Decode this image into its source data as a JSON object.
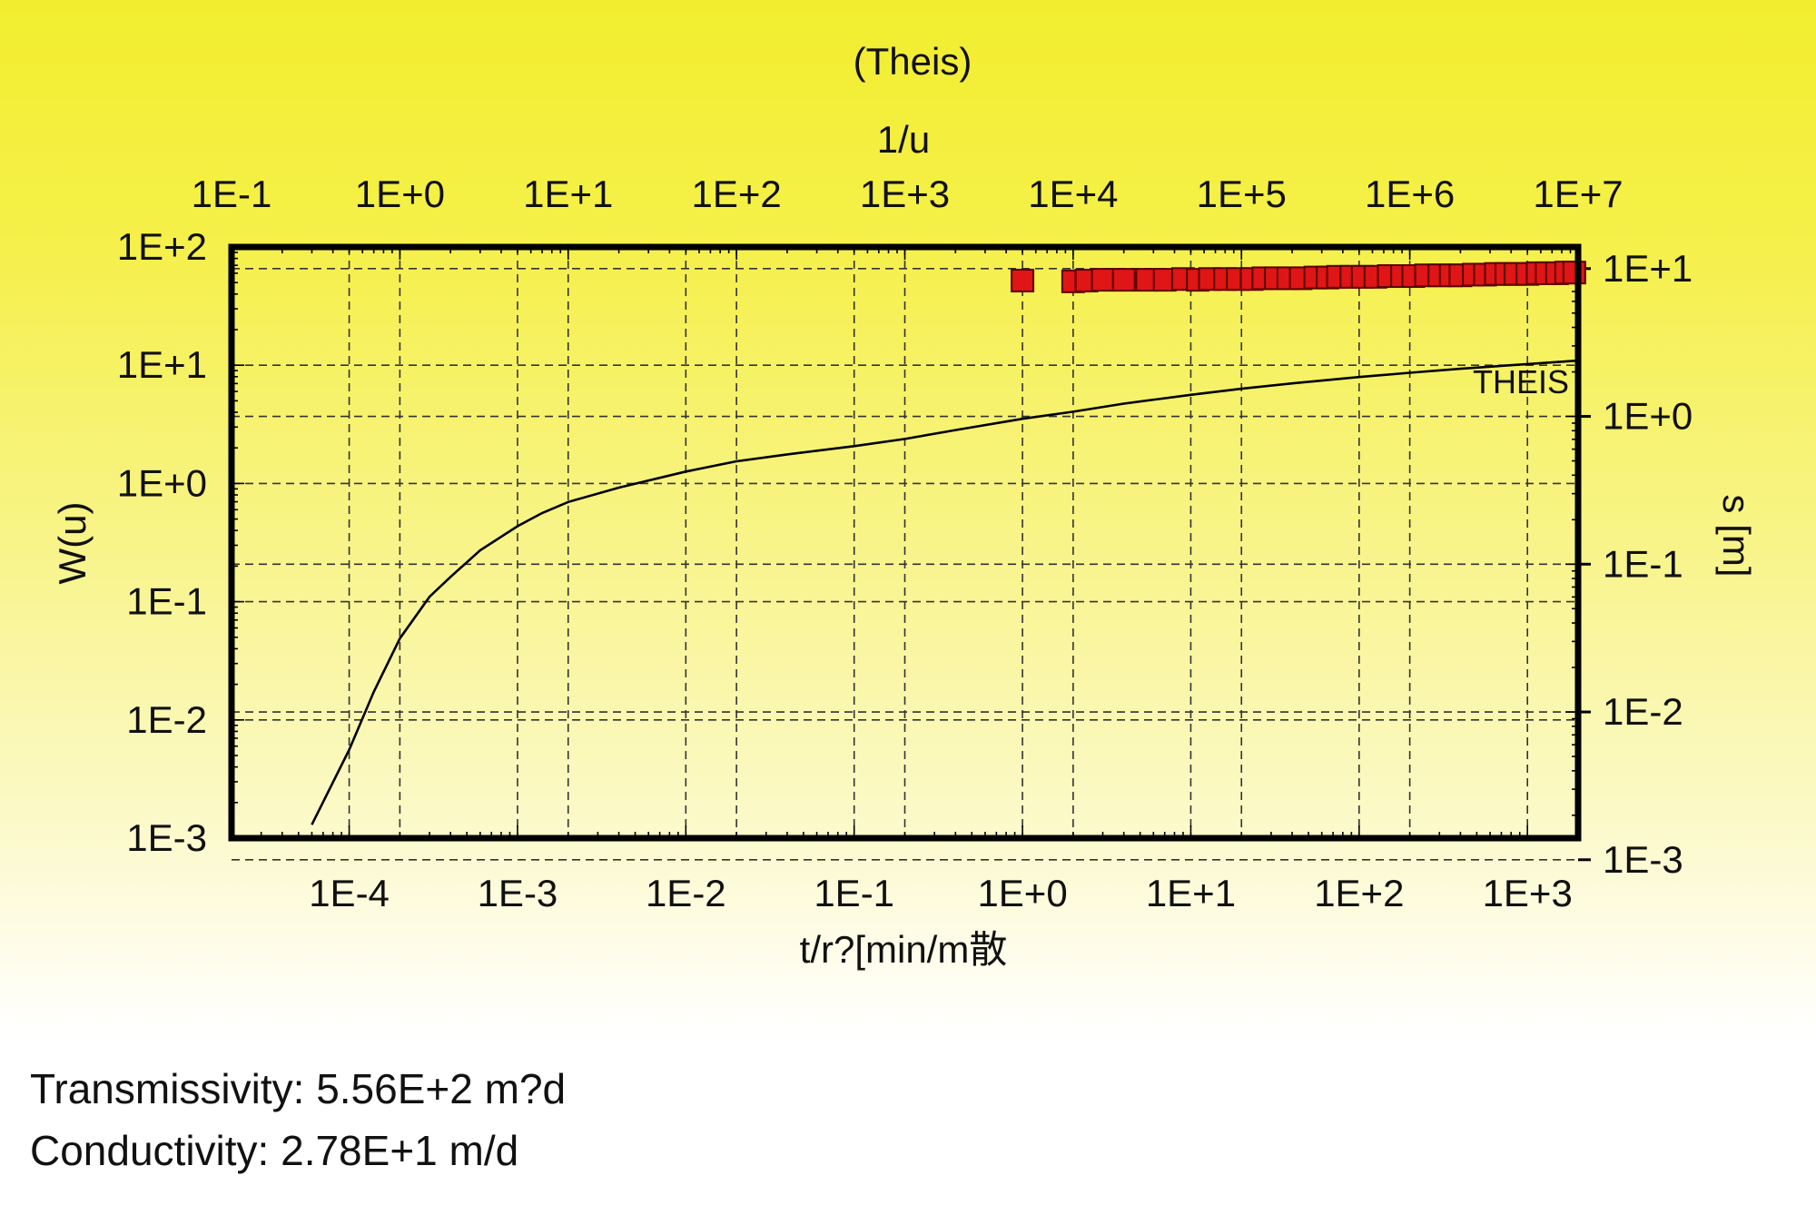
{
  "chart_data": {
    "type": "scatter",
    "title": "(Theis)",
    "top_axis": {
      "label": "1/u",
      "scale": "log",
      "range": [
        0.1,
        10000000
      ],
      "tick_labels": [
        "1E-1",
        "1E+0",
        "1E+1",
        "1E+2",
        "1E+3",
        "1E+4",
        "1E+5",
        "1E+6",
        "1E+7"
      ]
    },
    "bottom_axis": {
      "label": "t/r?[min/m散",
      "scale": "log",
      "range": [
        2e-05,
        2000
      ],
      "tick_labels": [
        "1E-4",
        "1E-3",
        "1E-2",
        "1E-1",
        "1E+0",
        "1E+1",
        "1E+2",
        "1E+3"
      ]
    },
    "left_axis": {
      "label": "W(u)",
      "scale": "log",
      "range": [
        0.001,
        100
      ],
      "tick_labels": [
        "1E-3",
        "1E-2",
        "1E-1",
        "1E+0",
        "1E+1",
        "1E+2"
      ]
    },
    "right_axis": {
      "label": "s [m]",
      "scale": "log",
      "range": [
        0.0014,
        14
      ],
      "tick_labels": [
        "1E-3",
        "1E-2",
        "1E-1",
        "1E+0",
        "1E+1"
      ]
    },
    "grid": true,
    "curve": {
      "name": "THEIS",
      "x_1_over_u": [
        0.3,
        0.5,
        0.7,
        1,
        1.5,
        2,
        3,
        5,
        7,
        10,
        20,
        50,
        100,
        200,
        500,
        1000,
        2000,
        5000,
        10000,
        20000,
        50000,
        100000,
        200000,
        500000,
        1000000,
        2000000,
        5000000,
        10000000
      ],
      "w_of_u": [
        0.0013,
        0.0056,
        0.0173,
        0.0489,
        0.11,
        0.162,
        0.272,
        0.435,
        0.562,
        0.697,
        0.922,
        1.26,
        1.54,
        1.76,
        2.07,
        2.38,
        2.83,
        3.52,
        4.04,
        4.73,
        5.62,
        6.33,
        7.02,
        7.94,
        8.63,
        9.33,
        10.24,
        10.94
      ]
    },
    "observed_points": {
      "x_t_over_r2": [
        1.0,
        2.0,
        2.4,
        3.0,
        4.0,
        5.5,
        7,
        9,
        11,
        13,
        16,
        19,
        23,
        27,
        32,
        38,
        45,
        55,
        65,
        75,
        90,
        105,
        125,
        150,
        180,
        210,
        250,
        300,
        350,
        400,
        480,
        560,
        650,
        750,
        850,
        1000,
        1150,
        1300,
        1500,
        1700,
        1900
      ],
      "s_m": [
        8.3,
        8.2,
        8.3,
        8.4,
        8.4,
        8.4,
        8.4,
        8.5,
        8.4,
        8.5,
        8.5,
        8.5,
        8.5,
        8.6,
        8.6,
        8.6,
        8.6,
        8.7,
        8.7,
        8.8,
        8.8,
        8.8,
        8.8,
        8.9,
        8.9,
        8.9,
        9.0,
        9.0,
        9.0,
        9.0,
        9.1,
        9.1,
        9.2,
        9.2,
        9.2,
        9.2,
        9.3,
        9.3,
        9.3,
        9.4,
        9.4
      ]
    },
    "colors": {
      "points": "#e01515",
      "curve": "#000000",
      "frame": "#000000"
    }
  },
  "results": {
    "transmissivity": "Transmissivity: 5.56E+2 m?d",
    "conductivity": "Conductivity: 2.78E+1 m/d"
  }
}
